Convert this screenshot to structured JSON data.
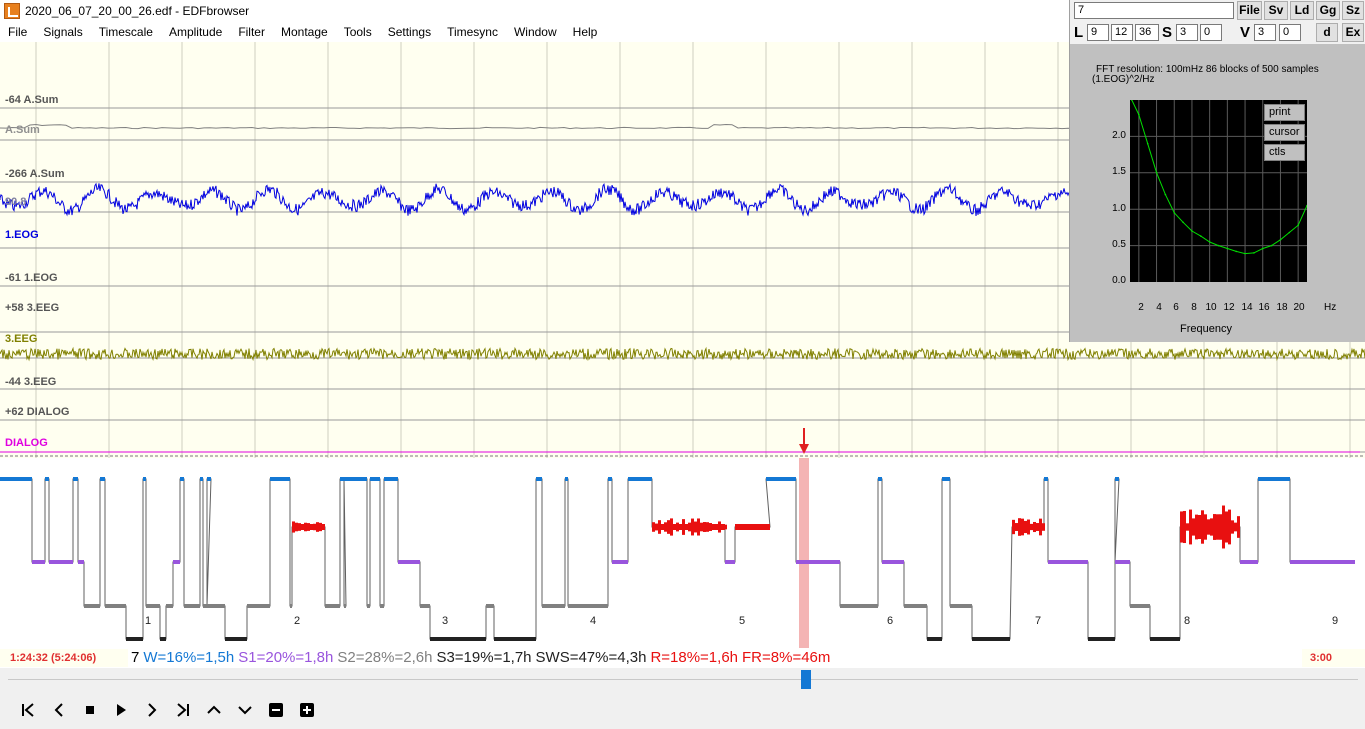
{
  "window": {
    "title": "2020_06_07_20_00_26.edf - EDFbrowser"
  },
  "menu": [
    "File",
    "Signals",
    "Timescale",
    "Amplitude",
    "Filter",
    "Montage",
    "Tools",
    "Settings",
    "Timesync",
    "Window",
    "Help"
  ],
  "signals": {
    "labels": {
      "asum_offset": "-64 A.Sum",
      "asum": "A.Sum",
      "eog_offset_top": "-266 A.Sum",
      "eog_value": "90.8",
      "eog": "1.EOG",
      "eog_offset_bottom": "-61 1.EOG",
      "eeg_offset_top": "+58 3.EEG",
      "eeg": "3.EEG",
      "eeg_offset_bottom": "-44 3.EEG",
      "dialog_offset": "+62 DIALOG",
      "dialog": "DIALOG"
    },
    "colors": {
      "eog": "#0000e0",
      "eeg": "#808000",
      "dialog": "#e000e0",
      "asum": "#808080",
      "cursor": "#e02020",
      "text": "#555555"
    }
  },
  "hypnogram": {
    "hour_ticks": [
      "1",
      "2",
      "3",
      "4",
      "5",
      "6",
      "7",
      "8",
      "9"
    ],
    "stages": [
      "W",
      "S1",
      "S2",
      "S3",
      "R"
    ],
    "colors": {
      "W": "#1478d4",
      "S1": "#9955dd",
      "S2": "#808080",
      "S3": "#222222",
      "R": "#e81010",
      "cursor": "#f4b4b4"
    }
  },
  "stats": {
    "time_left": "1:24:32 (5:24:06)",
    "epoch": "7",
    "W": "W=16%=1,5h",
    "S1": "S1=20%=1,8h",
    "S2": "S2=28%=2,6h",
    "S3": "S3=19%=1,7h",
    "SWS": "SWS=47%=4,3h",
    "R": "R=18%=1,6h",
    "FR": "FR=8%=46m",
    "time_right": "3:00"
  },
  "scrollbar": {
    "position": 0.593
  },
  "navbar": {
    "buttons": [
      {
        "name": "first-page-button",
        "glyph": "⏮"
      },
      {
        "name": "previous-button",
        "glyph": "❮"
      },
      {
        "name": "stop-button",
        "glyph": "■"
      },
      {
        "name": "play-button",
        "glyph": "▶"
      },
      {
        "name": "next-button",
        "glyph": "❯"
      },
      {
        "name": "last-page-button",
        "glyph": "⏭"
      },
      {
        "name": "scroll-up-button",
        "glyph": "⌃"
      },
      {
        "name": "scroll-down-button",
        "glyph": "⌄"
      },
      {
        "name": "zoom-out-button",
        "glyph": "➖"
      },
      {
        "name": "zoom-in-button",
        "glyph": "➕"
      }
    ]
  },
  "fft": {
    "search_value": "7",
    "buttons": [
      "File",
      "Sv",
      "Ld",
      "Gg",
      "Sz",
      "d",
      "Ex"
    ],
    "letters": [
      "L",
      "S",
      "V"
    ],
    "L_values": [
      "9",
      "12",
      "36"
    ],
    "S_values": [
      "3",
      "0"
    ],
    "V_values": [
      "3",
      "0"
    ],
    "resolution_text": "FFT resolution:  100mHz   86 blocks of 500 samples",
    "unit_text": "(1.EOG)^2/Hz",
    "plot_buttons": [
      "print",
      "cursor",
      "ctls"
    ],
    "x_ticks": [
      "2",
      "4",
      "6",
      "8",
      "10",
      "12",
      "14",
      "16",
      "18",
      "20"
    ],
    "x_unit": "Hz",
    "x_label": "Frequency",
    "y_ticks": [
      "2.0",
      "1.5",
      "1.0",
      "0.5",
      "0.0"
    ],
    "ylim": [
      0,
      2.5
    ],
    "xlim": [
      1,
      21
    ],
    "trace_color": "#00e000"
  },
  "chart_data": {
    "type": "line",
    "title": "",
    "xlabel": "Frequency",
    "ylabel": "(1.EOG)^2/Hz",
    "xlim": [
      1,
      21
    ],
    "ylim": [
      0,
      2.5
    ],
    "x": [
      1.2,
      2,
      3,
      4,
      5,
      6,
      7,
      8,
      9,
      10,
      11,
      12,
      13,
      14,
      15,
      16,
      17,
      18,
      19,
      20,
      21
    ],
    "series": [
      {
        "values": [
          2.6,
          2.3,
          1.9,
          1.5,
          1.2,
          0.95,
          0.82,
          0.7,
          0.63,
          0.55,
          0.5,
          0.46,
          0.42,
          0.39,
          0.4,
          0.46,
          0.5,
          0.58,
          0.68,
          0.78,
          1.05
        ]
      }
    ]
  }
}
